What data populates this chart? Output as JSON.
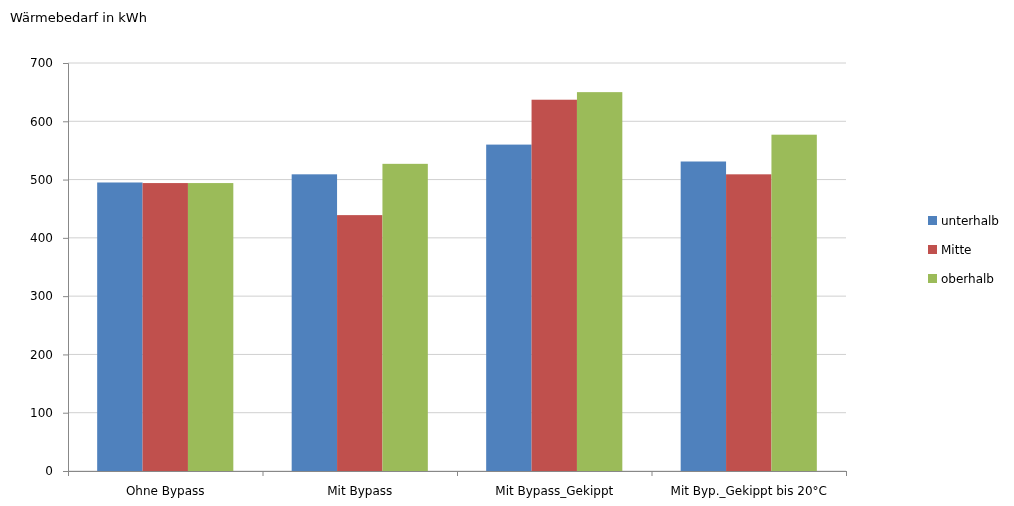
{
  "chart_data": {
    "type": "bar",
    "ylabel": "Wärmebedarf in kWh",
    "categories": [
      "Ohne Bypass",
      "Mit Bypass",
      "Mit Bypass_Gekippt",
      "Mit Byp._Gekippt bis 20°C"
    ],
    "series": [
      {
        "name": "unterhalb",
        "color": "#4f81bd",
        "values": [
          495,
          509,
          560,
          531
        ]
      },
      {
        "name": "Mitte",
        "color": "#c0504d",
        "values": [
          494,
          439,
          637,
          509
        ]
      },
      {
        "name": "oberhalb",
        "color": "#9bbb59",
        "values": [
          494,
          527,
          650,
          577
        ]
      }
    ],
    "ylim": [
      0,
      700
    ],
    "yticks": [
      0,
      100,
      200,
      300,
      400,
      500,
      600,
      700
    ],
    "grid": "y",
    "legend": "right"
  }
}
